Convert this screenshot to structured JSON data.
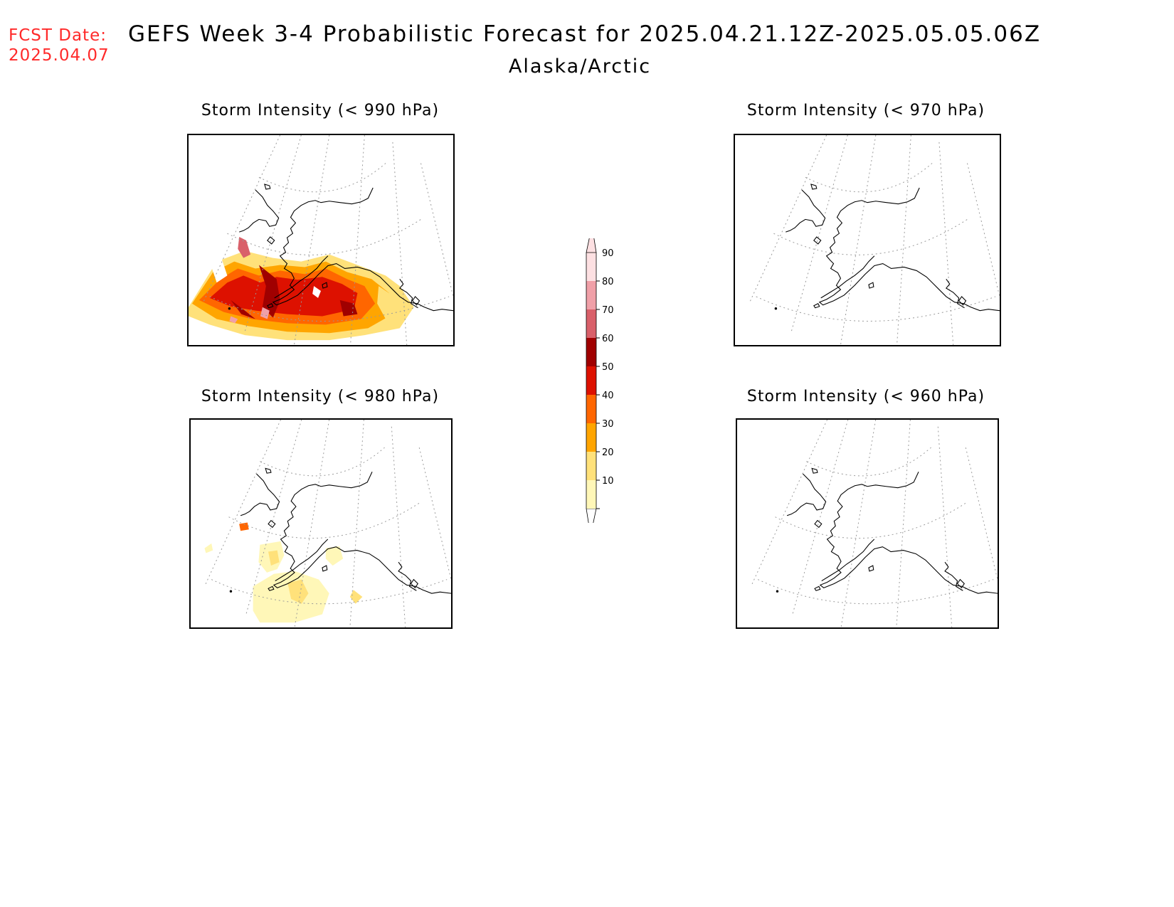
{
  "header": {
    "fcst_label_line1": "FCST Date:",
    "fcst_label_line2": "2025.04.07",
    "title": "GEFS Week 3-4 Probabilistic Forecast for 2025.04.21.12Z-2025.05.05.06Z",
    "subtitle": "Alaska/Arctic"
  },
  "panels": [
    {
      "id": "p990",
      "title": "Storm Intensity (< 990 hPa)",
      "threshold_hPa": 990,
      "shaded": "high"
    },
    {
      "id": "p970",
      "title": "Storm Intensity (< 970 hPa)",
      "threshold_hPa": 970,
      "shaded": "none"
    },
    {
      "id": "p980",
      "title": "Storm Intensity (< 980 hPa)",
      "threshold_hPa": 980,
      "shaded": "low"
    },
    {
      "id": "p960",
      "title": "Storm Intensity (< 960 hPa)",
      "threshold_hPa": 960,
      "shaded": "none"
    }
  ],
  "colorbar": {
    "levels": [
      "10",
      "20",
      "30",
      "40",
      "50",
      "60",
      "70",
      "80",
      "90"
    ],
    "colors": [
      "#fff7b8",
      "#ffe17a",
      "#ffa500",
      "#ff6600",
      "#dd1100",
      "#a00000",
      "#d9606a",
      "#f0a0a8",
      "#fde0e2"
    ]
  }
}
